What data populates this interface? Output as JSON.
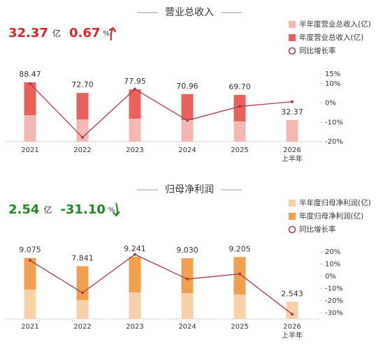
{
  "chart_data": [
    {
      "type": "bar",
      "title": "营业总收入",
      "headline": {
        "value": "32.37",
        "unit": "亿",
        "change": "0.67",
        "change_unit": "%",
        "color": "#d7262b"
      },
      "categories": [
        "2021",
        "2022",
        "2023",
        "2024",
        "2025",
        "2026"
      ],
      "category_note": "上半年",
      "series": [
        {
          "name": "半年度营业总收入(亿)",
          "color": "#f5b7b1",
          "values": [
            39.5,
            33.3,
            34.3,
            32.3,
            30.2,
            32.37
          ]
        },
        {
          "name": "年度营业总收入(亿)",
          "color": "#e8625b",
          "values": [
            88.47,
            72.7,
            77.95,
            70.96,
            69.7,
            null
          ],
          "value_labels": [
            "88.47",
            "72.70",
            "77.95",
            "70.96",
            "69.70",
            null
          ]
        },
        {
          "name": "同比增长率",
          "color": "#a8394f",
          "type": "line",
          "axis": "y2",
          "values": [
            10,
            -17.8,
            7.2,
            -9.0,
            -1.8,
            0.67
          ]
        }
      ],
      "y2lim": [
        -20,
        15
      ],
      "y2ticks": [
        {
          "value": 15,
          "label": "15%"
        },
        {
          "value": 10,
          "label": "10%"
        },
        {
          "value": 0,
          "label": "0%"
        },
        {
          "value": -10,
          "label": "-10%"
        },
        {
          "value": -20,
          "label": "-20%"
        }
      ]
    },
    {
      "type": "bar",
      "title": "归母净利润",
      "headline": {
        "value": "2.54",
        "unit": "亿",
        "change": "-31.10",
        "change_unit": "%",
        "color": "#1e8c1e"
      },
      "categories": [
        "2021",
        "2022",
        "2023",
        "2024",
        "2025",
        "2026"
      ],
      "category_note": "上半年",
      "series": [
        {
          "name": "半年度归母净利润(亿)",
          "color": "#f9d0a8",
          "values": [
            4.36,
            2.8,
            3.95,
            3.84,
            3.63,
            2.543
          ]
        },
        {
          "name": "年度归母净利润(亿)",
          "color": "#f0a04e",
          "values": [
            9.075,
            7.841,
            9.241,
            9.03,
            9.205,
            null
          ],
          "value_labels": [
            "9.075",
            "7.841",
            "9.241",
            "9.030",
            "9.205",
            null
          ]
        },
        {
          "name": "同比增长率",
          "color": "#a8394f",
          "type": "line",
          "axis": "y2",
          "values": [
            13,
            -13.6,
            17.9,
            -2.3,
            1.9,
            -31.1
          ]
        }
      ],
      "y2lim": [
        -35,
        20
      ],
      "y2ticks": [
        {
          "value": 20,
          "label": "20%"
        },
        {
          "value": 10,
          "label": "10%"
        },
        {
          "value": 0,
          "label": "0%"
        },
        {
          "value": -10,
          "label": "-10%"
        },
        {
          "value": -20,
          "label": "-20%"
        },
        {
          "value": -30,
          "label": "-30%"
        }
      ]
    }
  ]
}
